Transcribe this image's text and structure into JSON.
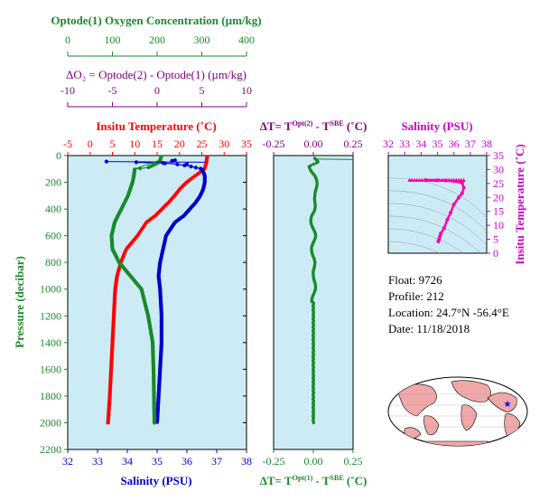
{
  "colors": {
    "oxygen": "#1a8a2a",
    "delta_o2": "#800080",
    "temperature": "#ff0000",
    "salinity": "#0000cc",
    "ts_pink": "#ff00aa",
    "ts_title": "#cc00cc",
    "panel_bg": "#cdebf5",
    "land": "#f0a8a8",
    "star": "#0000ff"
  },
  "info": {
    "float": "Float:  9726",
    "profile": "Profile:  212",
    "location": "Location:  24.7°N  -56.4°E",
    "date": "Date:  11/18/2018"
  },
  "chart_data": [
    {
      "type": "line",
      "panel": "main-profile",
      "title": "",
      "ylabel": "Pressure (decibar)",
      "ylim": [
        2200,
        0
      ],
      "yticks": [
        "0",
        "200",
        "400",
        "600",
        "800",
        "1000",
        "1200",
        "1400",
        "1600",
        "1800",
        "2000",
        "2200"
      ],
      "grid": false,
      "axes": {
        "oxygen": {
          "label": "Optode(1) Oxygen Concentration (µm/kg)",
          "range": [
            0,
            400
          ],
          "ticks": [
            "0",
            "100",
            "200",
            "300",
            "400"
          ]
        },
        "delta_o2": {
          "label": "ΔO₂ = Optode(2) - Optode(1)   (µm/kg)",
          "range": [
            -10,
            10
          ],
          "ticks": [
            "-10",
            "-5",
            "0",
            "5",
            "10"
          ]
        },
        "temperature": {
          "label": "Insitu Temperature (˚C)",
          "range": [
            -5,
            35
          ],
          "ticks": [
            "-5",
            "0",
            "5",
            "10",
            "15",
            "20",
            "25",
            "30",
            "35"
          ]
        },
        "salinity": {
          "label": "Salinity (PSU)",
          "range": [
            32,
            38
          ],
          "ticks": [
            "32",
            "33",
            "34",
            "35",
            "36",
            "37",
            "38"
          ]
        }
      },
      "series": [
        {
          "name": "",
          "axis": "temperature",
          "x": [
            26.2,
            26.0,
            25.5,
            23.5,
            21.5,
            20.0,
            18.8,
            17.5,
            16.0,
            14.5,
            12.5,
            10.5,
            8.0,
            6.8,
            6.0,
            5.6,
            5.3,
            5.0,
            4.7,
            4.4,
            4.2,
            4.0
          ],
          "y": [
            0,
            50,
            100,
            150,
            200,
            250,
            300,
            350,
            400,
            450,
            500,
            600,
            700,
            800,
            900,
            1000,
            1200,
            1400,
            1600,
            1800,
            1900,
            2000
          ]
        },
        {
          "name": "",
          "axis": "salinity",
          "x": [
            34.3,
            35.5,
            36.1,
            36.5,
            36.6,
            36.6,
            36.55,
            36.45,
            36.3,
            36.1,
            35.9,
            35.6,
            35.3,
            35.2,
            35.1,
            35.05,
            35.1,
            35.15,
            35.15,
            35.1,
            35.05,
            35.0
          ],
          "y": [
            50,
            60,
            80,
            100,
            150,
            200,
            250,
            300,
            350,
            400,
            450,
            500,
            600,
            700,
            800,
            900,
            1000,
            1200,
            1400,
            1600,
            1800,
            2000
          ]
        },
        {
          "name": "",
          "axis": "oxygen",
          "x": [
            210,
            205,
            180,
            150,
            148,
            145,
            135,
            120,
            105,
            98,
            100,
            115,
            140,
            165,
            180,
            190,
            192,
            193,
            194
          ],
          "y": [
            0,
            50,
            90,
            100,
            150,
            200,
            300,
            400,
            500,
            600,
            700,
            800,
            900,
            1000,
            1200,
            1400,
            1600,
            1800,
            2000
          ]
        }
      ]
    },
    {
      "type": "scatter",
      "panel": "delta-temperature",
      "title": "",
      "xlim": [
        -0.25,
        0.25
      ],
      "ylim": [
        2200,
        0
      ],
      "top_label": "ΔT= T^Opt(2) - T^SBE (˚C)",
      "bottom_label": "ΔT= T^Opt(1) - T^SBE (˚C)",
      "xticks": [
        "-0.25",
        "0.00",
        "0.25"
      ],
      "series": [
        {
          "name": "",
          "x": [
            0.0,
            0.03,
            -0.02,
            0.01,
            0.02,
            -0.01,
            0.005,
            -0.005,
            0.01,
            0.0,
            0.0,
            0.0,
            0.0,
            0.0,
            0.0
          ],
          "y": [
            20,
            50,
            80,
            150,
            300,
            450,
            600,
            750,
            900,
            1050,
            1200,
            1400,
            1600,
            1800,
            2000
          ]
        }
      ]
    },
    {
      "type": "scatter",
      "panel": "t-s-diagram",
      "title": "Salinity (PSU)",
      "xlabel": "Salinity (PSU)",
      "ylabel": "Insitu Temperature (˚C)",
      "xlim": [
        32,
        38
      ],
      "ylim": [
        0,
        35
      ],
      "xticks": [
        "32",
        "33",
        "34",
        "35",
        "36",
        "37",
        "38"
      ],
      "yticks": [
        "0",
        "5",
        "10",
        "15",
        "20",
        "25",
        "30",
        "35"
      ],
      "series": [
        {
          "name": "",
          "x": [
            34.3,
            35.0,
            35.5,
            36.0,
            36.5,
            36.6,
            36.5,
            36.3,
            36.0,
            35.8,
            35.6,
            35.4,
            35.2,
            35.15,
            35.1,
            35.05
          ],
          "y": [
            26.2,
            26.1,
            26.0,
            25.8,
            25.2,
            23.5,
            21.5,
            20.0,
            17.5,
            14.5,
            12.0,
            9.0,
            7.0,
            6.0,
            5.0,
            4.2
          ]
        }
      ]
    }
  ]
}
